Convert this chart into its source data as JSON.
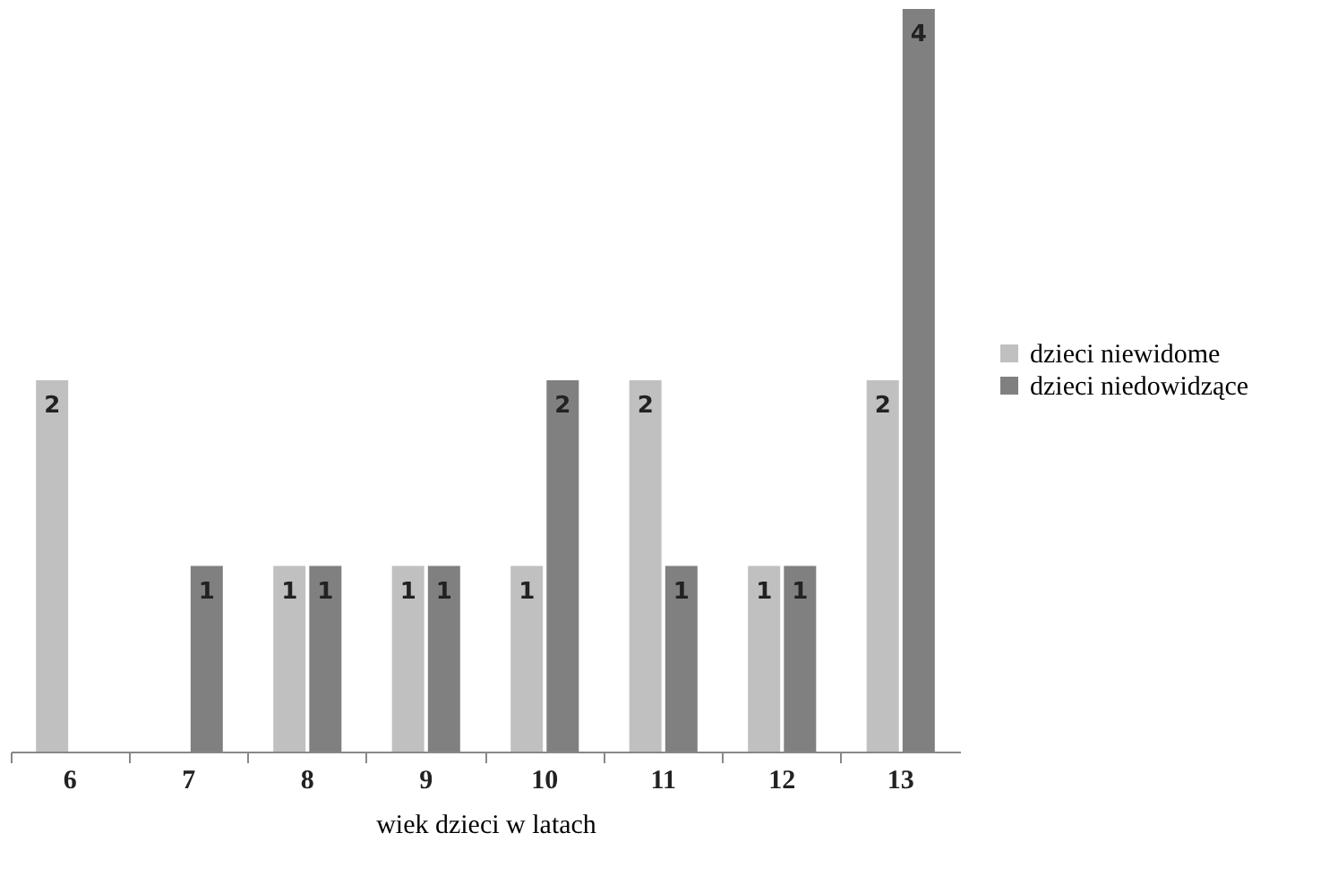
{
  "chart_data": {
    "type": "bar",
    "xlabel": "wiek dzieci w latach",
    "categories": [
      "6",
      "7",
      "8",
      "9",
      "10",
      "11",
      "12",
      "13"
    ],
    "series": [
      {
        "name": "dzieci niewidome",
        "color": "#c0c0c0",
        "values": [
          2,
          null,
          1,
          1,
          1,
          2,
          1,
          2
        ]
      },
      {
        "name": "dzieci niedowidzące",
        "color": "#808080",
        "values": [
          null,
          1,
          1,
          1,
          2,
          1,
          1,
          4
        ]
      }
    ],
    "data_labels": true,
    "legend": "right",
    "grid": false,
    "tick_labels": "x"
  }
}
